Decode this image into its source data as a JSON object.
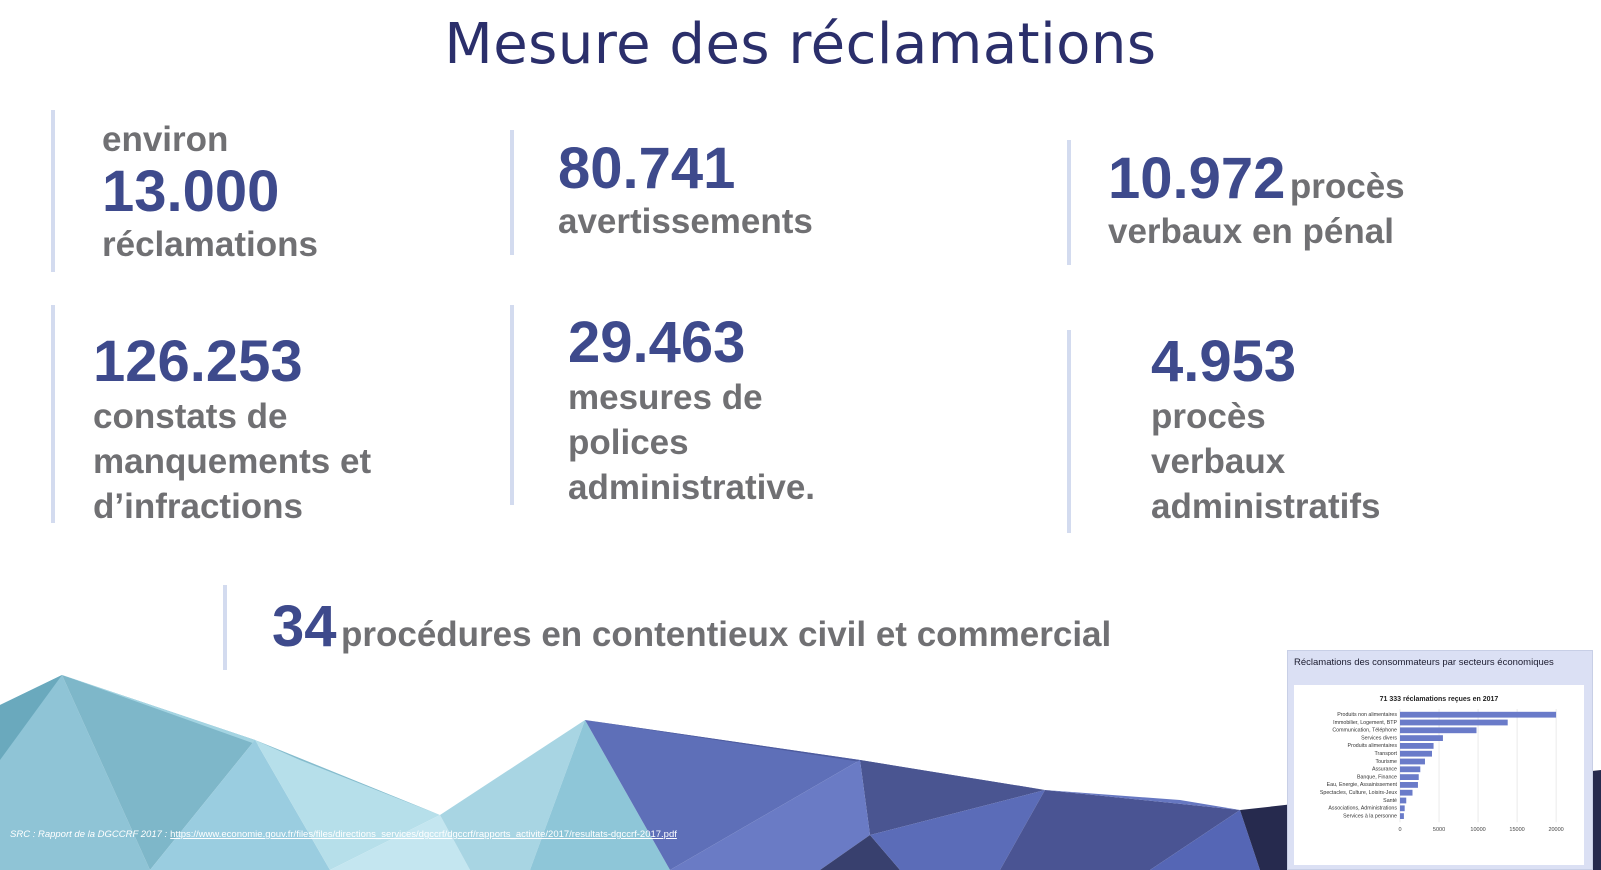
{
  "title": "Mesure des réclamations",
  "stats": {
    "reclamations": {
      "prefix": "environ",
      "number": "13.000",
      "label": "réclamations"
    },
    "avertissements": {
      "number": "80.741",
      "label": "avertissements"
    },
    "pv_penal": {
      "number": "10.972",
      "label_part1": "procès",
      "label_part2": "verbaux en pénal"
    },
    "constats": {
      "number": "126.253",
      "line1": "constats de",
      "line2": "manquements et",
      "line3": "d’infractions"
    },
    "mesures": {
      "number": "29.463",
      "line1": "mesures de",
      "line2": "polices",
      "line3": "administrative."
    },
    "pv_admin": {
      "number": "4.953",
      "line1": "procès",
      "line2": "verbaux",
      "line3": "administratifs"
    },
    "procedures": {
      "number": "34",
      "label": "procédures en contentieux civil et commercial"
    }
  },
  "source": {
    "label": "SRC : Rapport de la DGCCRF 2017 :",
    "link": "https://www.economie.gouv.fr/files/files/directions_services/dgccrf/dgccrf/rapports_activite/2017/resultats-dgccrf-2017.pdf"
  },
  "colors": {
    "accent": "#3e4a8c",
    "title": "#2b2f6b",
    "label": "#707073",
    "bar": "#6a7bc9"
  },
  "thumbnail": {
    "title": "Réclamations des consommateurs par secteurs économiques",
    "chart_data": {
      "type": "bar",
      "orientation": "horizontal",
      "title": "71 333 réclamations reçues en 2017",
      "categories": [
        "Produits non alimentaires",
        "Immobilier, Logement, BTP",
        "Communication, Téléphone",
        "Services divers",
        "Produits alimentaires",
        "Transport",
        "Tourisme",
        "Assurance",
        "Banque, Finance",
        "Eau, Energie, Assainissement",
        "Spectacles, Culture, Loisirs-Jeux",
        "Santé",
        "Associations, Administrations",
        "Services à la personne"
      ],
      "values": [
        20000,
        13800,
        9800,
        5500,
        4300,
        4100,
        3200,
        2600,
        2400,
        2300,
        1600,
        800,
        600,
        500
      ],
      "xticks": [
        "0",
        "5000",
        "10000",
        "15000",
        "20000"
      ],
      "xlim": [
        0,
        20500
      ],
      "grid": true
    }
  }
}
